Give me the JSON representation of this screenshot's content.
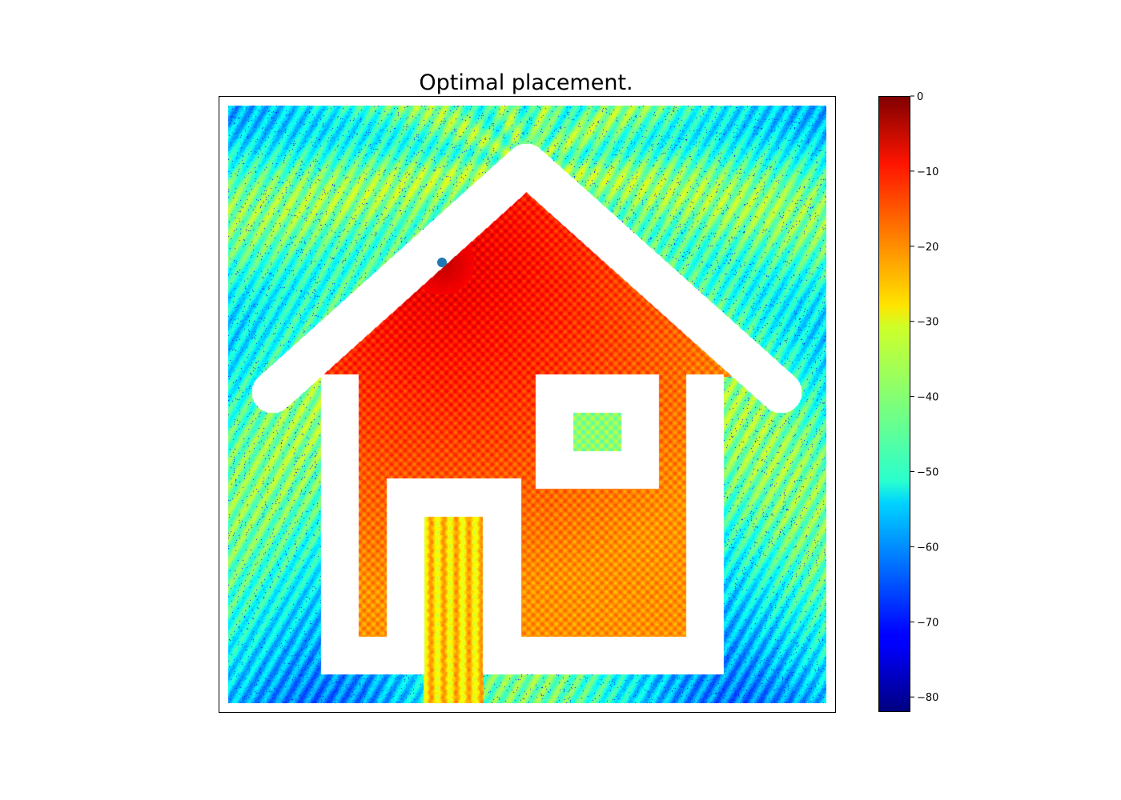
{
  "chart_data": {
    "type": "heatmap",
    "title": "Optimal placement.",
    "xlabel": "",
    "ylabel": "",
    "colormap": "jet",
    "colorbar": {
      "min": -82,
      "max": 0,
      "ticks": [
        0,
        -10,
        -20,
        -30,
        -40,
        -50,
        -60,
        -70,
        -80
      ],
      "tick_labels": [
        "0",
        "−10",
        "−20",
        "−30",
        "−40",
        "−50",
        "−60",
        "−70",
        "−80"
      ]
    },
    "value_ranges_db": {
      "outside_house": [
        -75,
        -25
      ],
      "inside_house": [
        -22,
        -8
      ],
      "door_gap": [
        -35,
        -20
      ],
      "window_interior": [
        -45,
        -35
      ],
      "near_marker_peak": -5
    },
    "placement_marker": {
      "color": "#1f77b4",
      "label": ""
    },
    "axes_ticks_visible": false,
    "grid": false,
    "legend": "none"
  },
  "colors": {
    "wall": "#ffffff",
    "marker": "#1f77b4",
    "frame": "#000000"
  }
}
